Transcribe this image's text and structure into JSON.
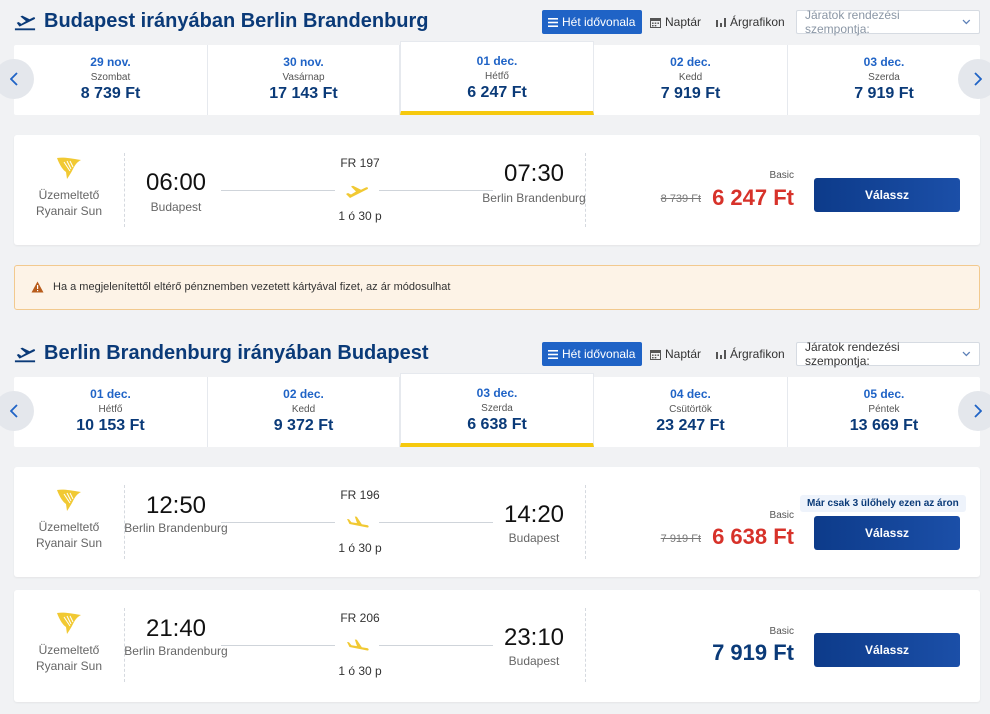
{
  "outbound": {
    "title": "Budapest irányában Berlin Brandenburg",
    "view_buttons": {
      "week": "Hét idővonala",
      "calendar": "Naptár",
      "price_chart": "Árgrafikon"
    },
    "sort_placeholder": "Járatok rendezési szempontja:",
    "dates": [
      {
        "date": "29 nov.",
        "weekday": "Szombat",
        "price": "8 739 Ft",
        "selected": false
      },
      {
        "date": "30 nov.",
        "weekday": "Vasárnap",
        "price": "17 143 Ft",
        "selected": false
      },
      {
        "date": "01 dec.",
        "weekday": "Hétfő",
        "price": "6 247 Ft",
        "selected": true
      },
      {
        "date": "02 dec.",
        "weekday": "Kedd",
        "price": "7 919 Ft",
        "selected": false
      },
      {
        "date": "03 dec.",
        "weekday": "Szerda",
        "price": "7 919 Ft",
        "selected": false
      }
    ],
    "flights": [
      {
        "operator_label": "Üzemeltető",
        "operator": "Ryanair Sun",
        "dep_time": "06:00",
        "dep_city": "Budapest",
        "flight_no": "FR 197",
        "duration": "1 ó 30 p",
        "arr_time": "07:30",
        "arr_city": "Berlin Brandenburg",
        "fare": "Basic",
        "old_price": "8 739 Ft",
        "price": "6 247 Ft",
        "choose": "Válassz"
      }
    ]
  },
  "warning": "Ha a megjelenítettől eltérő pénznemben vezetett kártyával fizet, az ár módosulhat",
  "inbound": {
    "title": "Berlin Brandenburg irányában Budapest",
    "view_buttons": {
      "week": "Hét idővonala",
      "calendar": "Naptár",
      "price_chart": "Árgrafikon"
    },
    "sort_placeholder": "Járatok rendezési szempontja:",
    "dates": [
      {
        "date": "01 dec.",
        "weekday": "Hétfő",
        "price": "10 153 Ft",
        "selected": false
      },
      {
        "date": "02 dec.",
        "weekday": "Kedd",
        "price": "9 372 Ft",
        "selected": false
      },
      {
        "date": "03 dec.",
        "weekday": "Szerda",
        "price": "6 638 Ft",
        "selected": true
      },
      {
        "date": "04 dec.",
        "weekday": "Csütörtök",
        "price": "23 247 Ft",
        "selected": false
      },
      {
        "date": "05 dec.",
        "weekday": "Péntek",
        "price": "13 669 Ft",
        "selected": false
      }
    ],
    "flights": [
      {
        "operator_label": "Üzemeltető",
        "operator": "Ryanair Sun",
        "dep_time": "12:50",
        "dep_city": "Berlin Brandenburg",
        "flight_no": "FR 196",
        "duration": "1 ó 30 p",
        "arr_time": "14:20",
        "arr_city": "Budapest",
        "fare": "Basic",
        "old_price": "7 919 Ft",
        "price": "6 638 Ft",
        "seat_badge": "Már csak 3 ülőhely ezen az áron",
        "choose": "Válassz"
      },
      {
        "operator_label": "Üzemeltető",
        "operator": "Ryanair Sun",
        "dep_time": "21:40",
        "dep_city": "Berlin Brandenburg",
        "flight_no": "FR 206",
        "duration": "1 ó 30 p",
        "arr_time": "23:10",
        "arr_city": "Budapest",
        "fare": "Basic",
        "price": "7 919 Ft",
        "choose": "Válassz"
      }
    ]
  },
  "colors": {
    "brand_blue": "#0a3a78",
    "accent_blue": "#1f63c6",
    "sale_red": "#d7322a",
    "selected_underline": "#f6c90e",
    "ryanair_gold": "#f1c933"
  }
}
